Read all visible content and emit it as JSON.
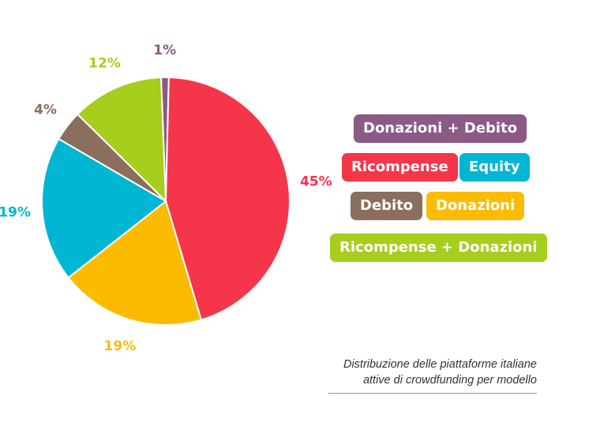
{
  "chart_data": {
    "type": "pie",
    "title": "",
    "slices": [
      {
        "label": "Donazioni + Debito",
        "value": 1,
        "display": "1%",
        "color": "#8b5a86"
      },
      {
        "label": "Ricompense",
        "value": 45,
        "display": "45%",
        "color": "#f5364a"
      },
      {
        "label": "Donazioni",
        "value": 19,
        "display": "19%",
        "color": "#fdbb00"
      },
      {
        "label": "Equity",
        "value": 19,
        "display": "19%",
        "color": "#00b6d3"
      },
      {
        "label": "Debito",
        "value": 4,
        "display": "4%",
        "color": "#8b6e5c"
      },
      {
        "label": "Ricompense + Donazioni",
        "value": 12,
        "display": "12%",
        "color": "#a7cd1d"
      }
    ]
  },
  "legend": {
    "donazioni_debito": "Donazioni + Debito",
    "ricompense": "Ricompense",
    "equity": "Equity",
    "debito": "Debito",
    "donazioni": "Donazioni",
    "ricompense_donazioni": "Ricompense + Donazioni"
  },
  "caption": {
    "line1": "Distribuzione delle piattaforme italiane",
    "line2": "attive di crowdfunding per modello"
  }
}
